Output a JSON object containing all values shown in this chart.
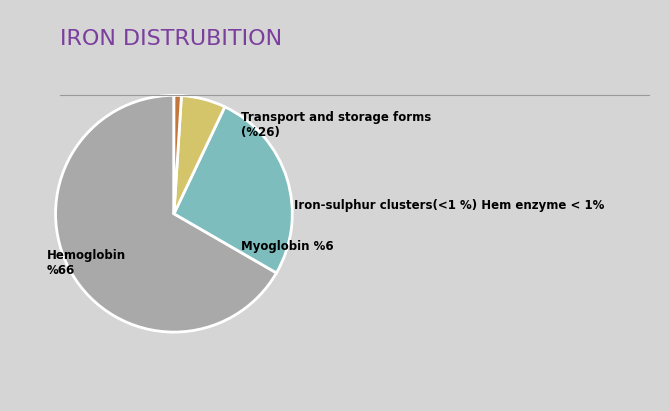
{
  "title": "IRON DISTRUBITION",
  "title_color": "#7B3F9E",
  "background_color": "#D5D5D5",
  "bottom_bar_color": "#999999",
  "line_color": "#999999",
  "slices": [
    66,
    26,
    6,
    1
  ],
  "slice_colors": [
    "#A9A9A9",
    "#7DBDBD",
    "#D4C46A",
    "#C4763A"
  ],
  "startangle": 90,
  "label_transport": "Transport and storage forms\n(%26)",
  "label_iron": "Iron-sulphur clusters(<1 %) Hem enzyme < 1%",
  "label_myoglobin": "Myoglobin %6",
  "label_hemoglobin": "Hemoglobin\n%66",
  "title_fontsize": 16,
  "label_fontsize": 8.5
}
